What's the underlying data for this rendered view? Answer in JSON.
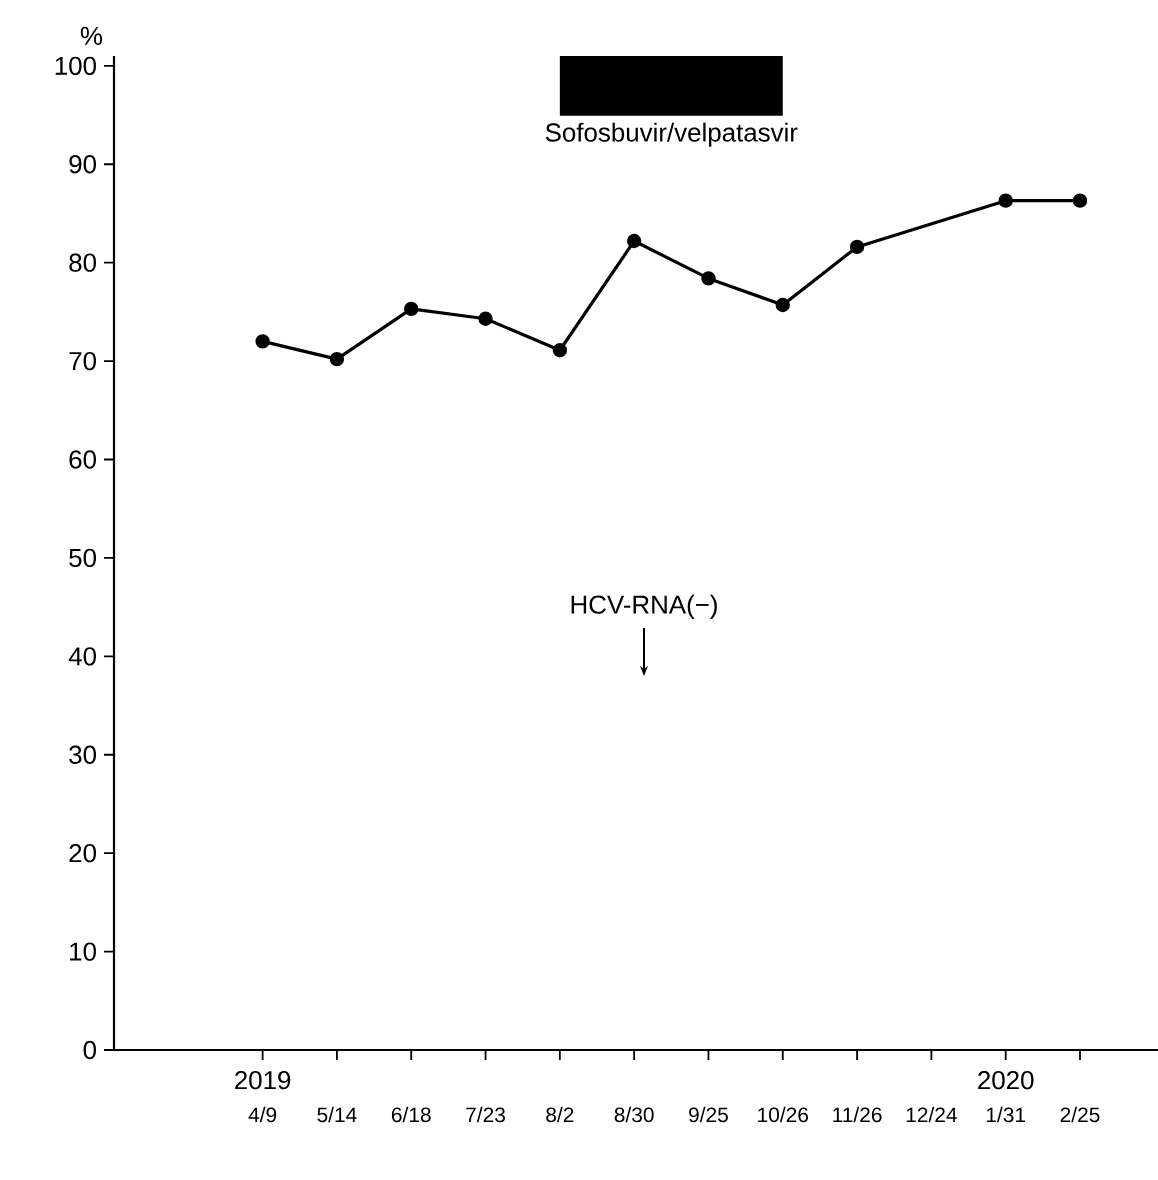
{
  "chart_data": {
    "type": "line",
    "ylabel": "%",
    "categories": [
      "4/9",
      "5/14",
      "6/18",
      "7/23",
      "8/2",
      "8/30",
      "9/25",
      "10/26",
      "11/26",
      "12/24",
      "1/31",
      "2/25"
    ],
    "series": [
      {
        "color": "#000000",
        "values": [
          72.0,
          70.2,
          75.3,
          74.3,
          71.1,
          82.2,
          78.4,
          75.7,
          81.6,
          null,
          86.3,
          86.3
        ]
      }
    ],
    "ylim": [
      0,
      101
    ],
    "yticks": [
      0,
      10,
      20,
      30,
      40,
      50,
      60,
      70,
      80,
      90,
      100
    ],
    "marker": "circle",
    "line_style": "solid",
    "bands": [
      {
        "axis": "x",
        "from": "8/2",
        "to": "10/26",
        "label": "Sofosbuvir/velpatasvir",
        "color": "#000000"
      }
    ],
    "annotations": [
      "HCV-RNA(−)",
      {
        "text": "2019",
        "x": "4/9"
      },
      {
        "text": "2020",
        "x": "1/31"
      }
    ]
  }
}
